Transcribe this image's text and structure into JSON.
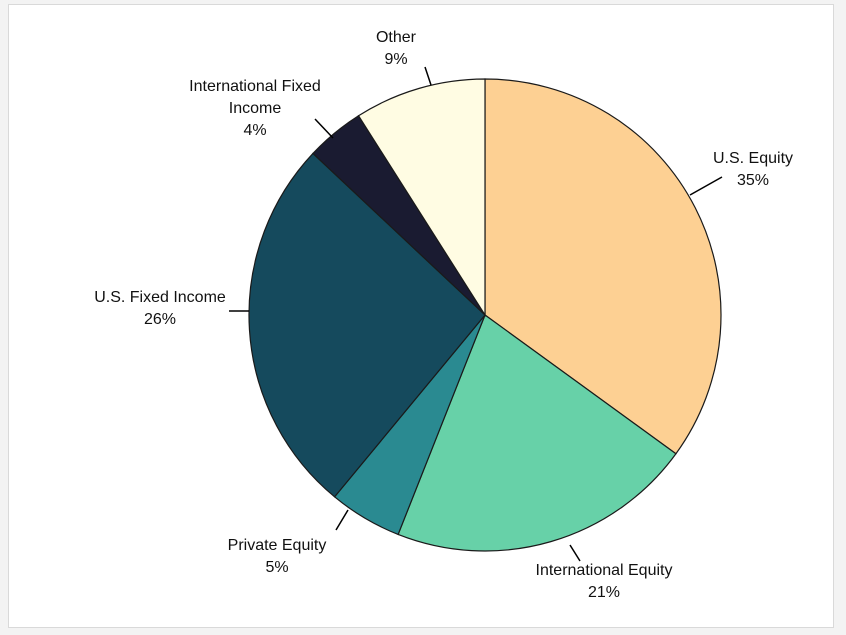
{
  "chart_data": {
    "type": "pie",
    "title": "",
    "slices": [
      {
        "label_lines": [
          "U.S. Equity"
        ],
        "pct_label": "35%",
        "value": 35,
        "color": "#FDD093"
      },
      {
        "label_lines": [
          "International Equity"
        ],
        "pct_label": "21%",
        "value": 21,
        "color": "#67D1A8"
      },
      {
        "label_lines": [
          "Private Equity"
        ],
        "pct_label": "5%",
        "value": 5,
        "color": "#2A8A91"
      },
      {
        "label_lines": [
          "U.S. Fixed Income"
        ],
        "pct_label": "26%",
        "value": 26,
        "color": "#154A5D"
      },
      {
        "label_lines": [
          "International Fixed",
          "Income"
        ],
        "pct_label": "4%",
        "value": 4,
        "color": "#1A1B31"
      },
      {
        "label_lines": [
          "Other"
        ],
        "pct_label": "9%",
        "value": 9,
        "color": "#FFFCE3"
      }
    ],
    "start_angle_deg": 0,
    "direction": "clockwise",
    "legend": "none",
    "label_placement": "outside-with-leader-lines"
  }
}
